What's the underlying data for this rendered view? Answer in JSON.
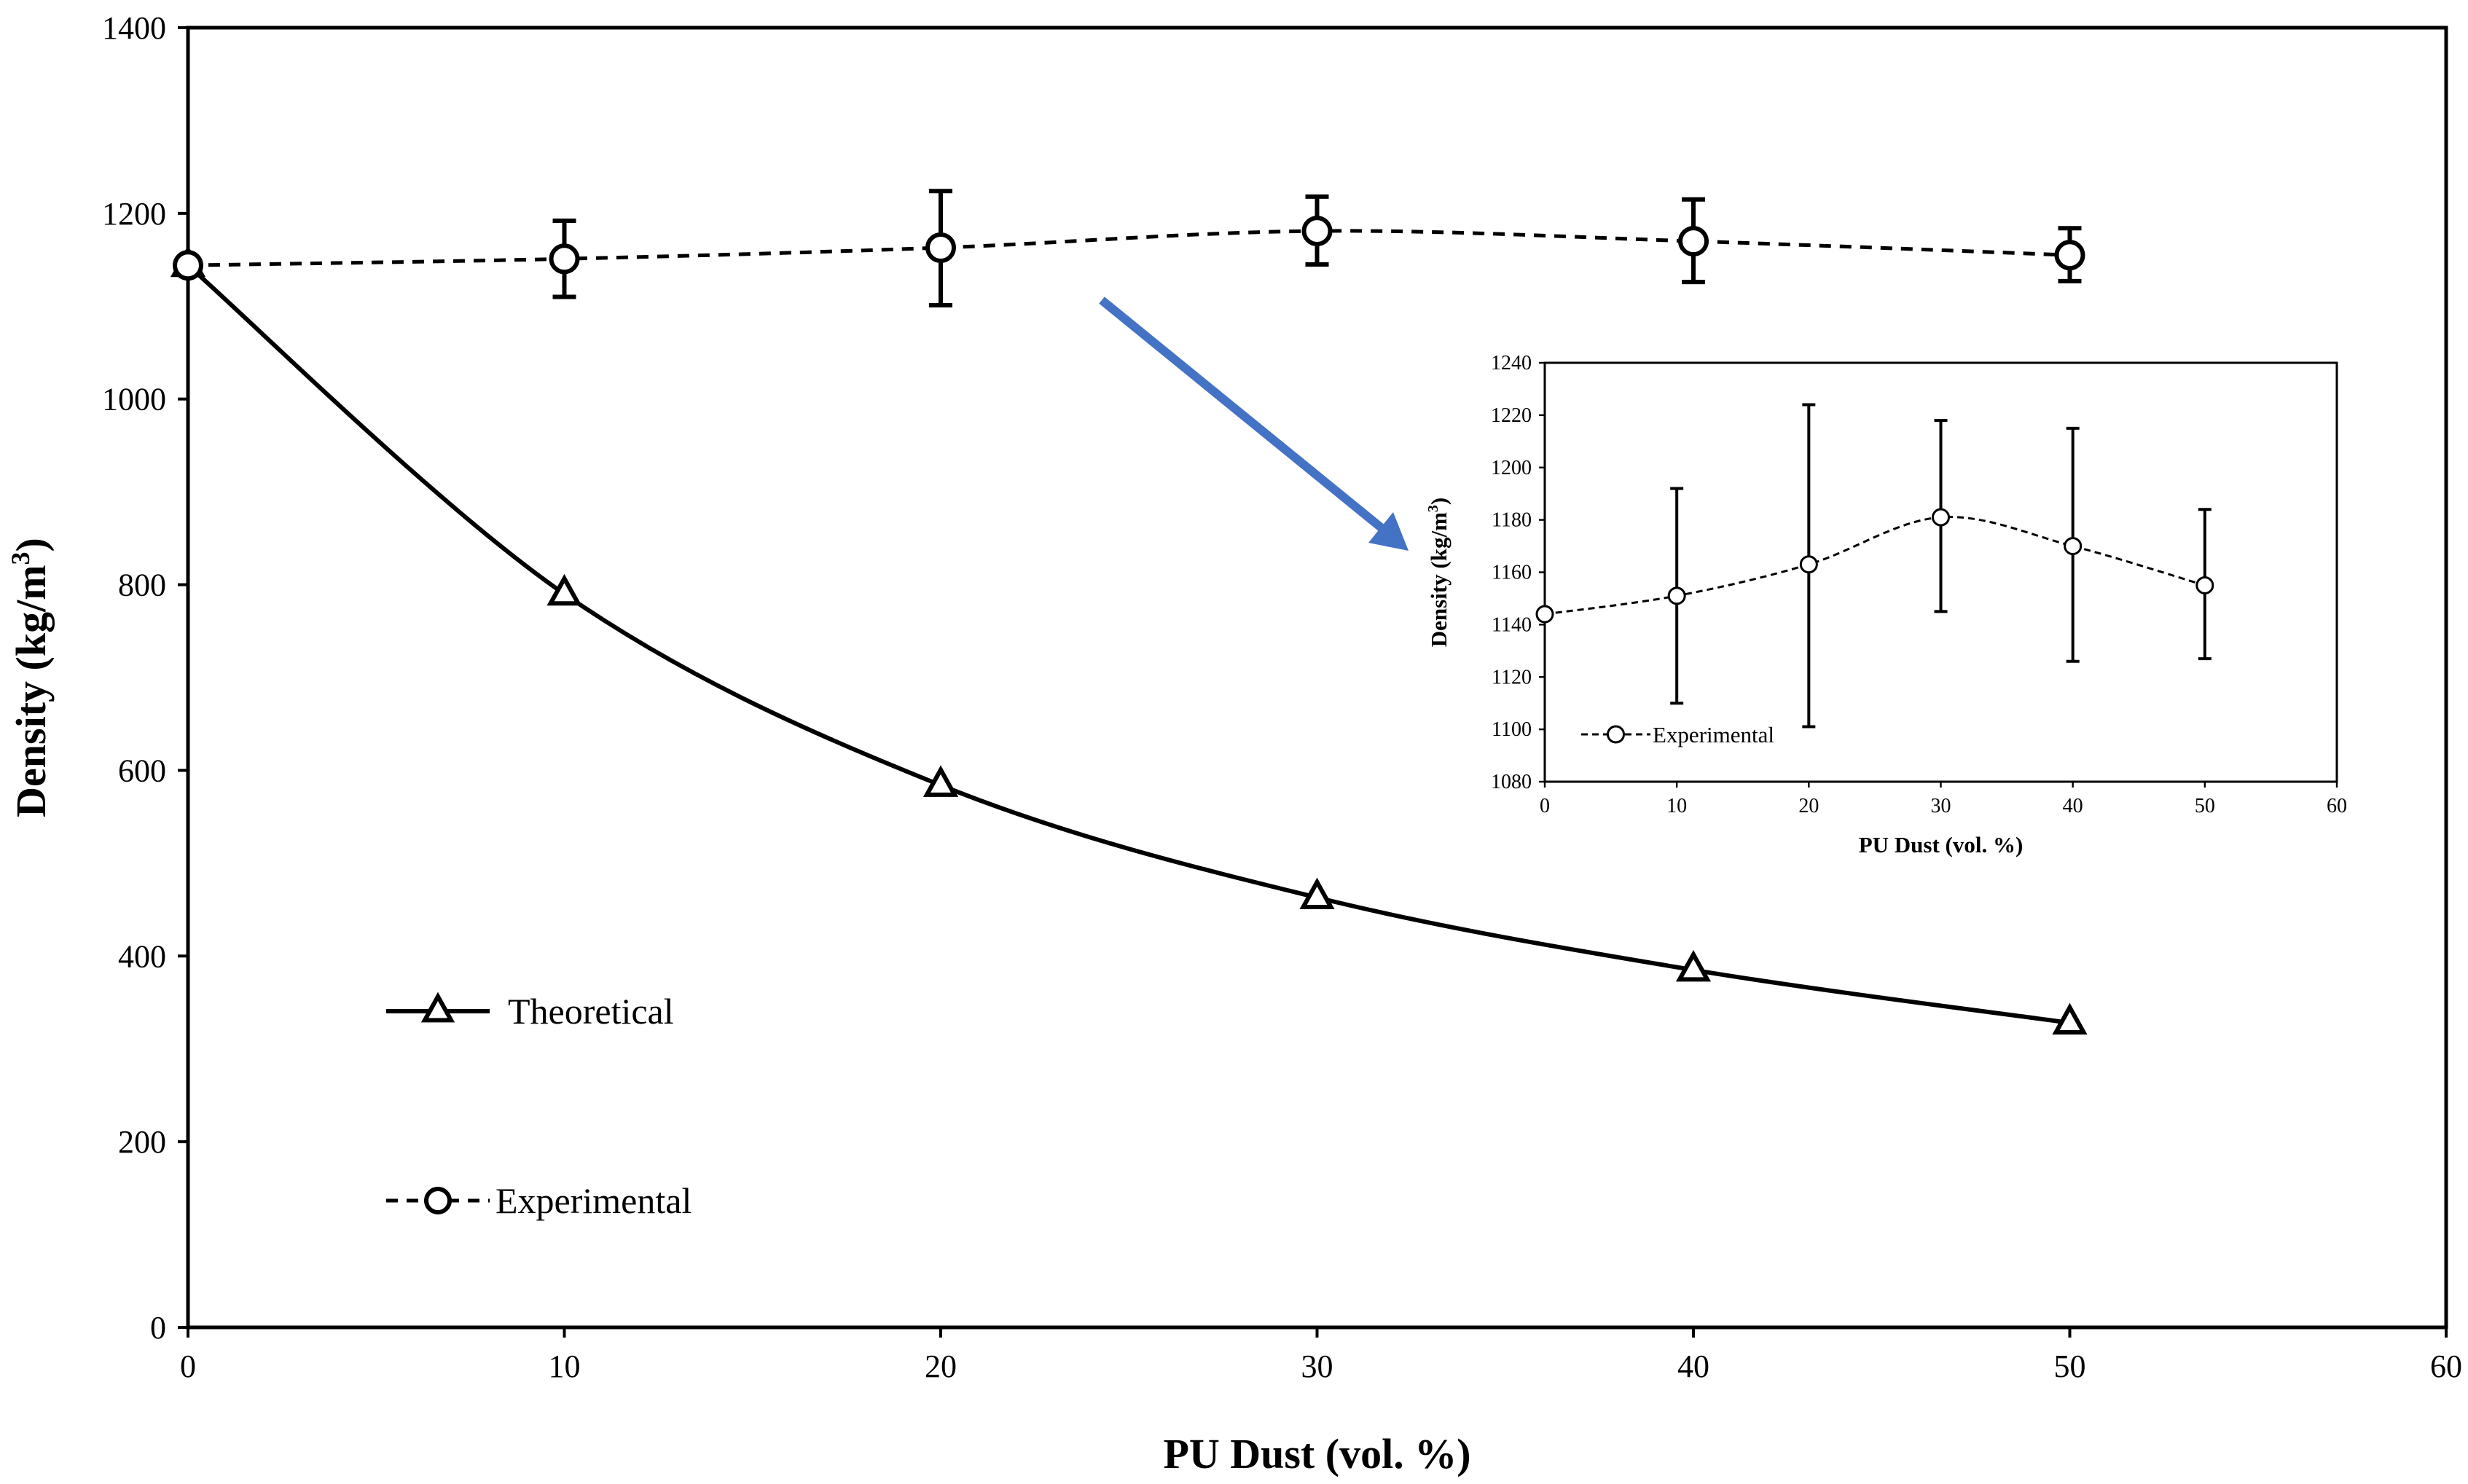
{
  "chart_data": [
    {
      "type": "line",
      "xlabel": "PU Dust (vol. %)",
      "ylabel_main": "Density (kg/m",
      "ylabel_sup": "3",
      "ylabel_close": ")",
      "xlim": [
        0,
        60
      ],
      "ylim": [
        0,
        1400
      ],
      "x_ticks": [
        0,
        10,
        20,
        30,
        40,
        50,
        60
      ],
      "y_ticks": [
        0,
        200,
        400,
        600,
        800,
        1000,
        1200,
        1400
      ],
      "series": [
        {
          "name": "Theoretical",
          "marker": "triangle",
          "line": "solid",
          "x": [
            0,
            10,
            20,
            30,
            40,
            50
          ],
          "values": [
            1144,
            790,
            584,
            463,
            385,
            328
          ]
        },
        {
          "name": "Experimental",
          "marker": "circle",
          "line": "dashed",
          "x": [
            0,
            10,
            20,
            30,
            40,
            50
          ],
          "values": [
            1144,
            1151,
            1163,
            1181,
            1170,
            1155
          ],
          "error_low": [
            1144,
            1110,
            1101,
            1145,
            1126,
            1127
          ],
          "error_high": [
            1144,
            1192,
            1224,
            1218,
            1215,
            1184
          ]
        }
      ]
    },
    {
      "type": "line",
      "xlabel": "PU Dust (vol. %)",
      "ylabel_main": "Density (kg/m",
      "ylabel_sup": "3",
      "ylabel_close": ")",
      "xlim": [
        0,
        60
      ],
      "ylim": [
        1080,
        1240
      ],
      "x_ticks": [
        0,
        10,
        20,
        30,
        40,
        50,
        60
      ],
      "y_ticks": [
        1080,
        1100,
        1120,
        1140,
        1160,
        1180,
        1200,
        1220,
        1240
      ],
      "series": [
        {
          "name": "Experimental",
          "marker": "circle",
          "line": "dashed",
          "x": [
            0,
            10,
            20,
            30,
            40,
            50
          ],
          "values": [
            1144,
            1151,
            1163,
            1181,
            1170,
            1155
          ],
          "error_low": [
            1144,
            1110,
            1101,
            1145,
            1126,
            1127
          ],
          "error_high": [
            1144,
            1192,
            1224,
            1218,
            1215,
            1184
          ]
        }
      ]
    }
  ],
  "annotation": {
    "arrow_color": "#4472C4"
  }
}
